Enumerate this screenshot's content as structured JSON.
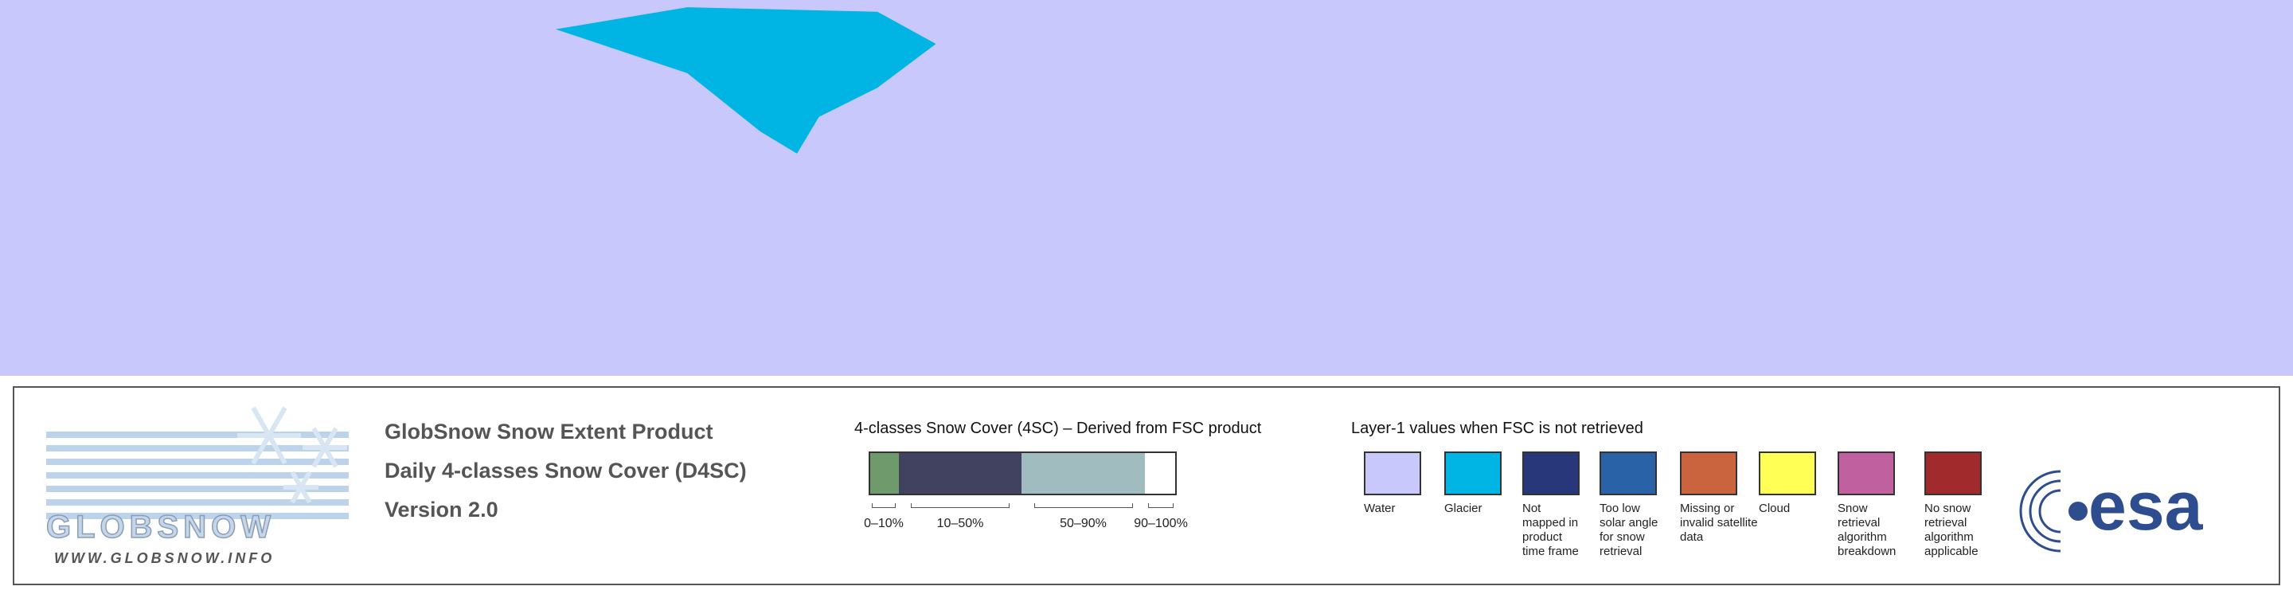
{
  "logo": {
    "name": "GLOBSNOW",
    "url": "WWW.GLOBSNOW.INFO"
  },
  "product": {
    "title": "GlobSnow Snow Extent Product",
    "subtitle": "Daily 4-classes Snow Cover (D4SC)",
    "version": "Version 2.0"
  },
  "snow_cover": {
    "title": "4-classes Snow Cover (4SC) – Derived from FSC product",
    "classes": [
      {
        "label": "0–10%",
        "color": "#6f9a6c"
      },
      {
        "label": "10–50%",
        "color": "#41425f"
      },
      {
        "label": "50–90%",
        "color": "#a1bcbf"
      },
      {
        "label": "90–100%",
        "color": "#ffffff"
      }
    ]
  },
  "layer1": {
    "title": "Layer-1 values when FSC is not retrieved",
    "items": [
      {
        "label": "Water",
        "color": "#c8c8fc"
      },
      {
        "label": "Glacier",
        "color": "#00b4e4"
      },
      {
        "label": "Not mapped in product time frame",
        "color": "#28377a"
      },
      {
        "label": "Too low solar angle for snow retrieval",
        "color": "#2a62a8"
      },
      {
        "label": "Missing or invalid satellite data",
        "color": "#c9643f"
      },
      {
        "label": "Cloud",
        "color": "#ffff55"
      },
      {
        "label": "Snow retrieval algorithm breakdown",
        "color": "#c0609e"
      },
      {
        "label": "No snow retrieval algorithm applicable",
        "color": "#a02a2c"
      }
    ]
  },
  "agency": "esa"
}
